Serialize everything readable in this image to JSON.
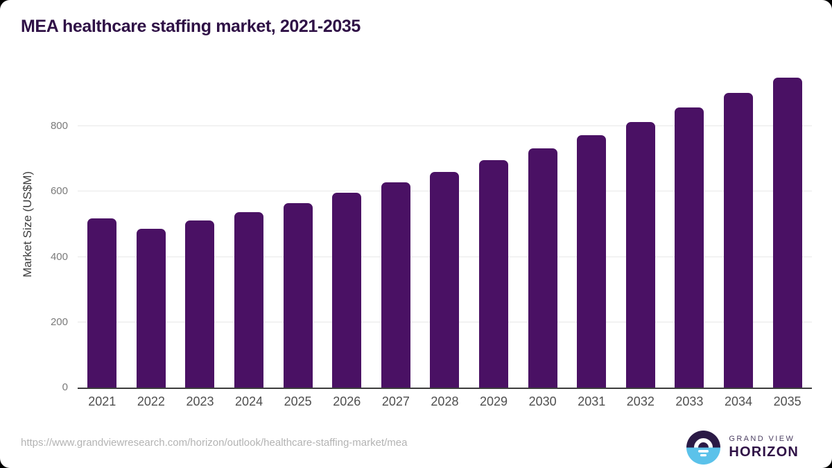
{
  "page": {
    "title": "MEA healthcare staffing market, 2021-2035",
    "source_url": "https://www.grandviewresearch.com/horizon/outlook/healthcare-staffing-market/mea"
  },
  "chart_data": {
    "type": "bar",
    "title": "MEA healthcare staffing market, 2021-2035",
    "categories": [
      "2021",
      "2022",
      "2023",
      "2024",
      "2025",
      "2026",
      "2027",
      "2028",
      "2029",
      "2030",
      "2031",
      "2032",
      "2033",
      "2034",
      "2035"
    ],
    "values": [
      517.2,
      486.1,
      511.3,
      537.4,
      565.6,
      595.8,
      627.5,
      661.0,
      696.2,
      733.3,
      772.4,
      813.6,
      856.9,
      902.6,
      948.7
    ],
    "xlabel": "",
    "ylabel": "Market Size (US$M)",
    "unit": "US$M",
    "ylim": [
      0,
      1000
    ],
    "y_ticks": [
      0,
      200,
      400,
      600,
      800
    ],
    "grid": "horizontal-only",
    "legend": "none",
    "bar_color": "#4a1164"
  },
  "branding": {
    "logo_line1": "GRAND VIEW",
    "logo_line2": "HORIZON",
    "logo_icon": "horizon-sunrise-circle-icon"
  },
  "colors": {
    "title": "#2f1146",
    "bar": "#4a1164",
    "axis_line": "#3c3c3c",
    "gridline": "#e8e8e8",
    "y_tick_text": "#7a7a7a",
    "x_tick_text": "#4f4f4f",
    "url_text": "#b3b3b3",
    "logo_navy": "#2b1a46",
    "logo_blue": "#5bc2ea"
  }
}
